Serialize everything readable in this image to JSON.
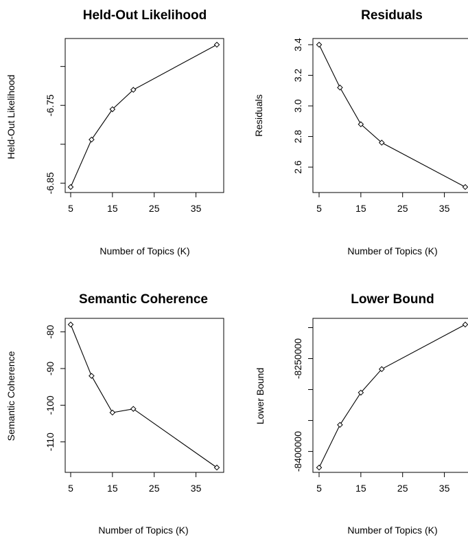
{
  "chart_data": [
    {
      "type": "line",
      "title": "Held-Out Likelihood",
      "xlabel": "Number of Topics (K)",
      "ylabel": "Held-Out Likelihood",
      "x": [
        5,
        10,
        15,
        20,
        40
      ],
      "values": [
        -6.855,
        -6.794,
        -6.755,
        -6.73,
        -6.672
      ],
      "xlim": [
        5,
        40
      ],
      "ylim": [
        -6.855,
        -6.672
      ],
      "xticks": [
        5,
        15,
        25,
        35
      ],
      "xtick_labels": [
        "5",
        "15",
        "25",
        "35"
      ],
      "yticks": [
        -6.85,
        -6.75
      ],
      "ytick_labels": [
        "-6.85",
        "-6.75"
      ],
      "yticks_unlabeled": [
        -6.8,
        -6.7
      ],
      "grid": false
    },
    {
      "type": "line",
      "title": "Residuals",
      "xlabel": "Number of Topics (K)",
      "ylabel": "Residuals",
      "x": [
        5,
        10,
        15,
        20,
        40
      ],
      "values": [
        3.4,
        3.12,
        2.88,
        2.76,
        2.47
      ],
      "xlim": [
        5,
        40
      ],
      "ylim": [
        2.47,
        3.4
      ],
      "xticks": [
        5,
        15,
        25,
        35
      ],
      "xtick_labels": [
        "5",
        "15",
        "25",
        "35"
      ],
      "yticks": [
        2.6,
        2.8,
        3.0,
        3.2,
        3.4
      ],
      "ytick_labels": [
        "2.6",
        "2.8",
        "3.0",
        "3.2",
        "3.4"
      ],
      "grid": false
    },
    {
      "type": "line",
      "title": "Semantic Coherence",
      "xlabel": "Number of Topics (K)",
      "ylabel": "Semantic Coherence",
      "x": [
        5,
        10,
        15,
        20,
        40
      ],
      "values": [
        -78,
        -92,
        -102,
        -101,
        -117
      ],
      "xlim": [
        5,
        40
      ],
      "ylim": [
        -117,
        -78
      ],
      "xticks": [
        5,
        15,
        25,
        35
      ],
      "xtick_labels": [
        "5",
        "15",
        "25",
        "35"
      ],
      "yticks": [
        -110,
        -100,
        -90,
        -80
      ],
      "ytick_labels": [
        "-110",
        "-100",
        "-90",
        "-80"
      ],
      "grid": false
    },
    {
      "type": "line",
      "title": "Lower Bound",
      "xlabel": "Number of Topics (K)",
      "ylabel": "Lower Bound",
      "x": [
        5,
        10,
        15,
        20,
        40
      ],
      "values": [
        -8426000,
        -8357000,
        -8305000,
        -8267000,
        -8195000
      ],
      "xlim": [
        5,
        40
      ],
      "ylim": [
        -8426000,
        -8195000
      ],
      "xticks": [
        5,
        15,
        25,
        35
      ],
      "xtick_labels": [
        "5",
        "15",
        "25",
        "35"
      ],
      "yticks": [
        -8400000,
        -8250000
      ],
      "ytick_labels": [
        "-8400000",
        "-8250000"
      ],
      "yticks_unlabeled": [
        -8350000,
        -8300000,
        -8200000
      ],
      "grid": false
    }
  ]
}
